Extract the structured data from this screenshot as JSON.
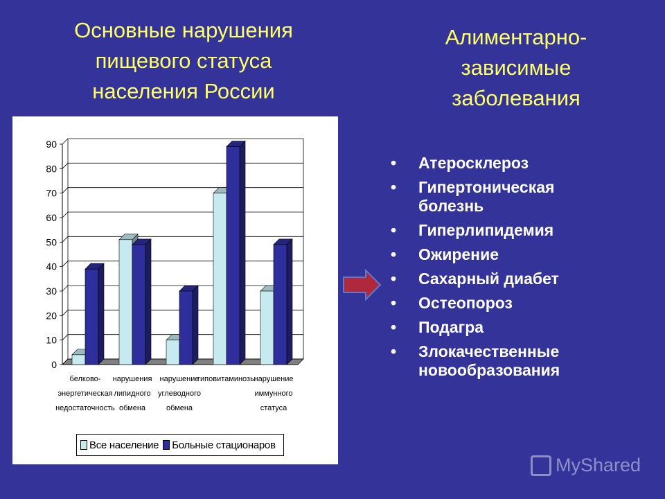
{
  "left_title": [
    "Основные нарушения",
    "пищевого статуса",
    "населения России"
  ],
  "right_title": [
    "Алиментарно-",
    "зависимые",
    "заболевания"
  ],
  "diseases": [
    [
      "Атеросклероз"
    ],
    [
      "Гипертоническая",
      "болезнь"
    ],
    [
      "Гиперлипидемия"
    ],
    [
      "Ожирение"
    ],
    [
      "Сахарный диабет"
    ],
    [
      "Остеопороз"
    ],
    [
      "Подагра"
    ],
    [
      "Злокачественные",
      "новообразования"
    ]
  ],
  "watermark": "MyShared",
  "colors": {
    "background": "#33339a",
    "title": "#ffff66",
    "series_1": "#c6eaf0",
    "series_2": "#2e2e9c",
    "arrow": "#b0283c"
  },
  "chart_data": {
    "type": "bar",
    "title": "",
    "xlabel": "",
    "ylabel": "",
    "ylim": [
      0,
      90
    ],
    "yticks": [
      "0",
      "10",
      "20",
      "30",
      "40",
      "50",
      "60",
      "70",
      "80",
      "90"
    ],
    "categories": [
      [
        "белково-",
        "энергетическая",
        "недостаточность"
      ],
      [
        "нарушения",
        "липидного",
        "обмена"
      ],
      [
        "нарушение",
        "углеводного",
        "обмена"
      ],
      [
        "гиповитаминозы"
      ],
      [
        "нарушение",
        "иммунного",
        "статуса"
      ]
    ],
    "series": [
      {
        "name": "Все население",
        "values": [
          4,
          51,
          10,
          70,
          30
        ]
      },
      {
        "name": "Больные стационаров",
        "values": [
          39,
          49,
          30,
          89,
          49
        ]
      }
    ],
    "grid": true,
    "legend": "bottom"
  }
}
